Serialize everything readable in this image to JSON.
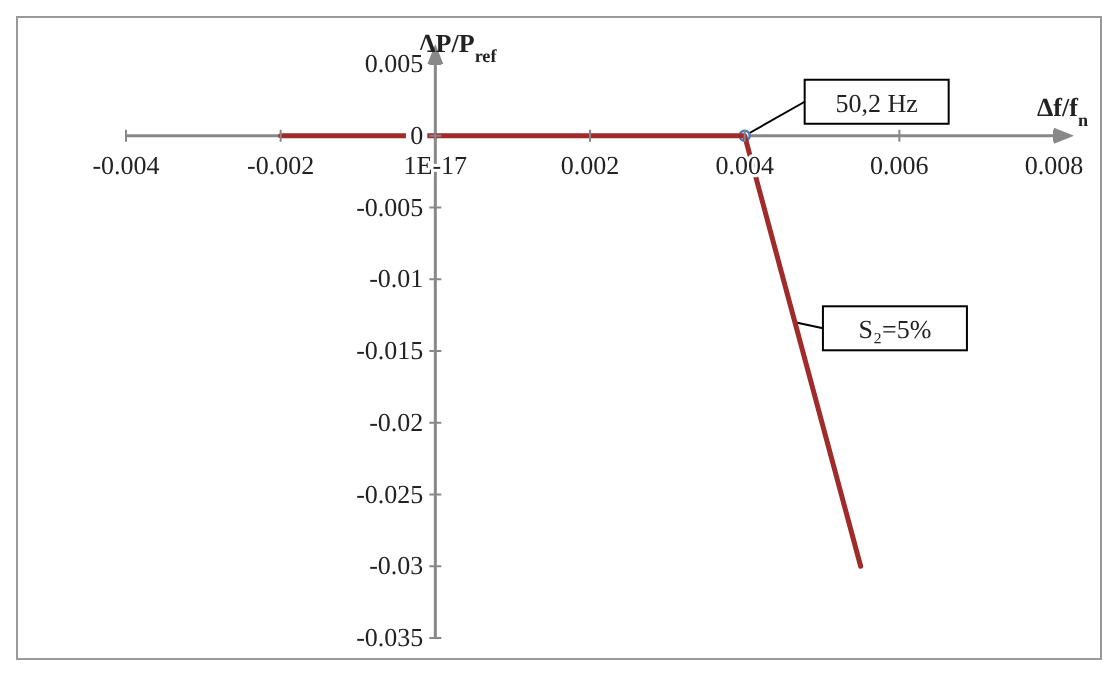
{
  "chart_data": {
    "type": "line",
    "xlabel": "Δf/f$_{n}$",
    "ylabel": "ΔP/P$_{ref}$",
    "series": [
      {
        "color": "#a02b2b",
        "x": [
          -0.002,
          0.004,
          0.0055
        ],
        "values": [
          0,
          0,
          -0.03
        ]
      }
    ],
    "xlim": [
      -0.004,
      0.008
    ],
    "xticks": [
      -0.004,
      -0.002,
      {
        "value": 0,
        "label": "1E-17"
      },
      0.002,
      0.004,
      0.006,
      0.008
    ],
    "ylim": [
      -0.035,
      0.005
    ],
    "yticks": [
      0.005,
      0,
      -0.005,
      -0.01,
      -0.015,
      -0.02,
      -0.025,
      -0.03,
      -0.035
    ],
    "marker": "none",
    "line_style": "solid",
    "grid": false,
    "legend": false,
    "annotations": [
      {
        "text": "50,2 Hz",
        "x": 0.004,
        "y": 0
      },
      {
        "text": "S₂=5%",
        "x": 0.00465,
        "y": -0.013
      }
    ]
  }
}
